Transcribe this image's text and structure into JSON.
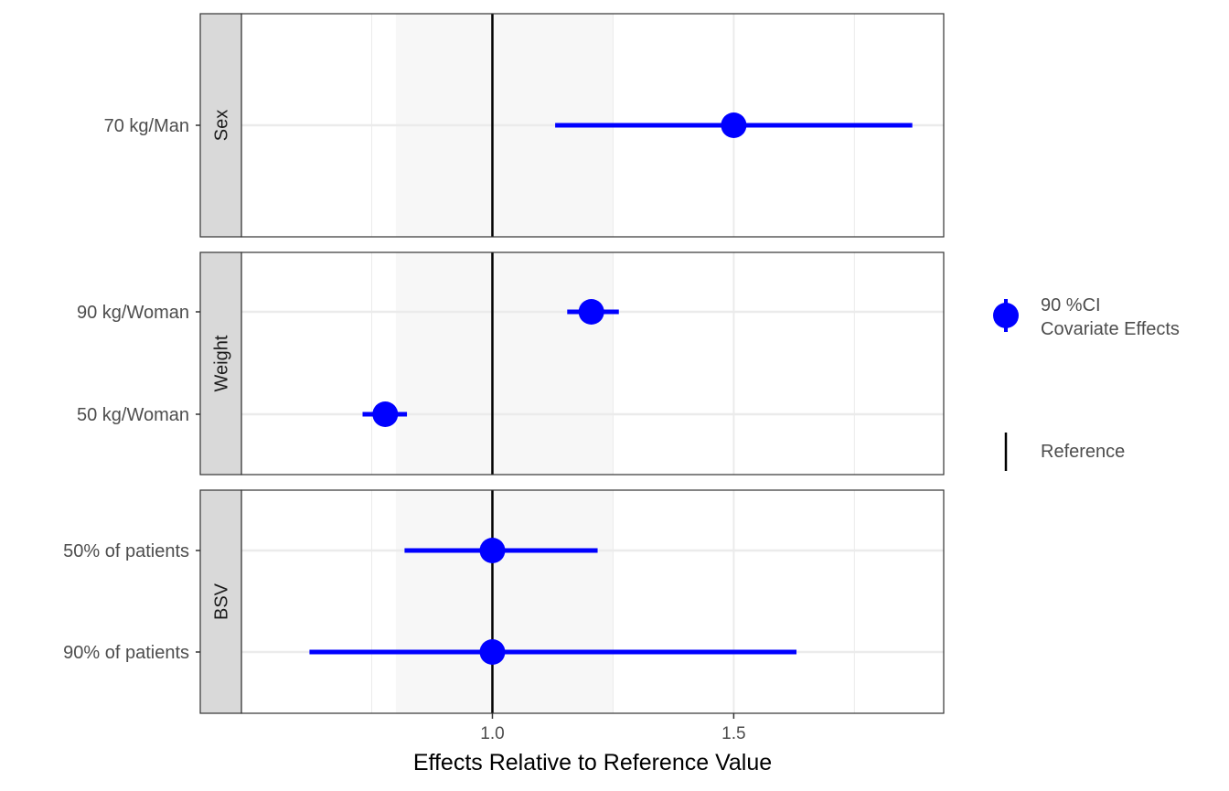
{
  "chart_data": {
    "type": "forest",
    "xlabel": "Effects Relative to Reference Value",
    "xlim": [
      0.48,
      1.935
    ],
    "x_ticks": [
      1.0,
      1.5
    ],
    "x_tick_labels": [
      "1.0",
      "1.5"
    ],
    "x_minor_grid": [
      0.75,
      1.25,
      1.75
    ],
    "reference_value": 1.0,
    "shaded_band": [
      0.8,
      1.25
    ],
    "grid": true,
    "legend_position": "right",
    "legend": {
      "ci_label_line1": "90 %CI",
      "ci_label_line2": "Covariate Effects",
      "reference_label": "Reference"
    },
    "panels": [
      {
        "strip": "Sex",
        "rows": [
          {
            "label": "70 kg/Man",
            "estimate": 1.5,
            "lower": 1.13,
            "upper": 1.87
          }
        ]
      },
      {
        "strip": "Weight",
        "rows": [
          {
            "label": "90 kg/Woman",
            "estimate": 1.205,
            "lower": 1.155,
            "upper": 1.262
          },
          {
            "label": "50 kg/Woman",
            "estimate": 0.778,
            "lower": 0.731,
            "upper": 0.823
          }
        ]
      },
      {
        "strip": "BSV",
        "rows": [
          {
            "label": "50% of patients",
            "estimate": 1.0,
            "lower": 0.818,
            "upper": 1.218
          },
          {
            "label": "90% of patients",
            "estimate": 1.0,
            "lower": 0.621,
            "upper": 1.63
          }
        ]
      }
    ],
    "colors": {
      "point": "#0000ff",
      "reference_line": "#000000",
      "band": "#f7f7f7",
      "grid": "#ebebeb",
      "strip": "#d9d9d9",
      "panel_border": "#333333"
    }
  }
}
